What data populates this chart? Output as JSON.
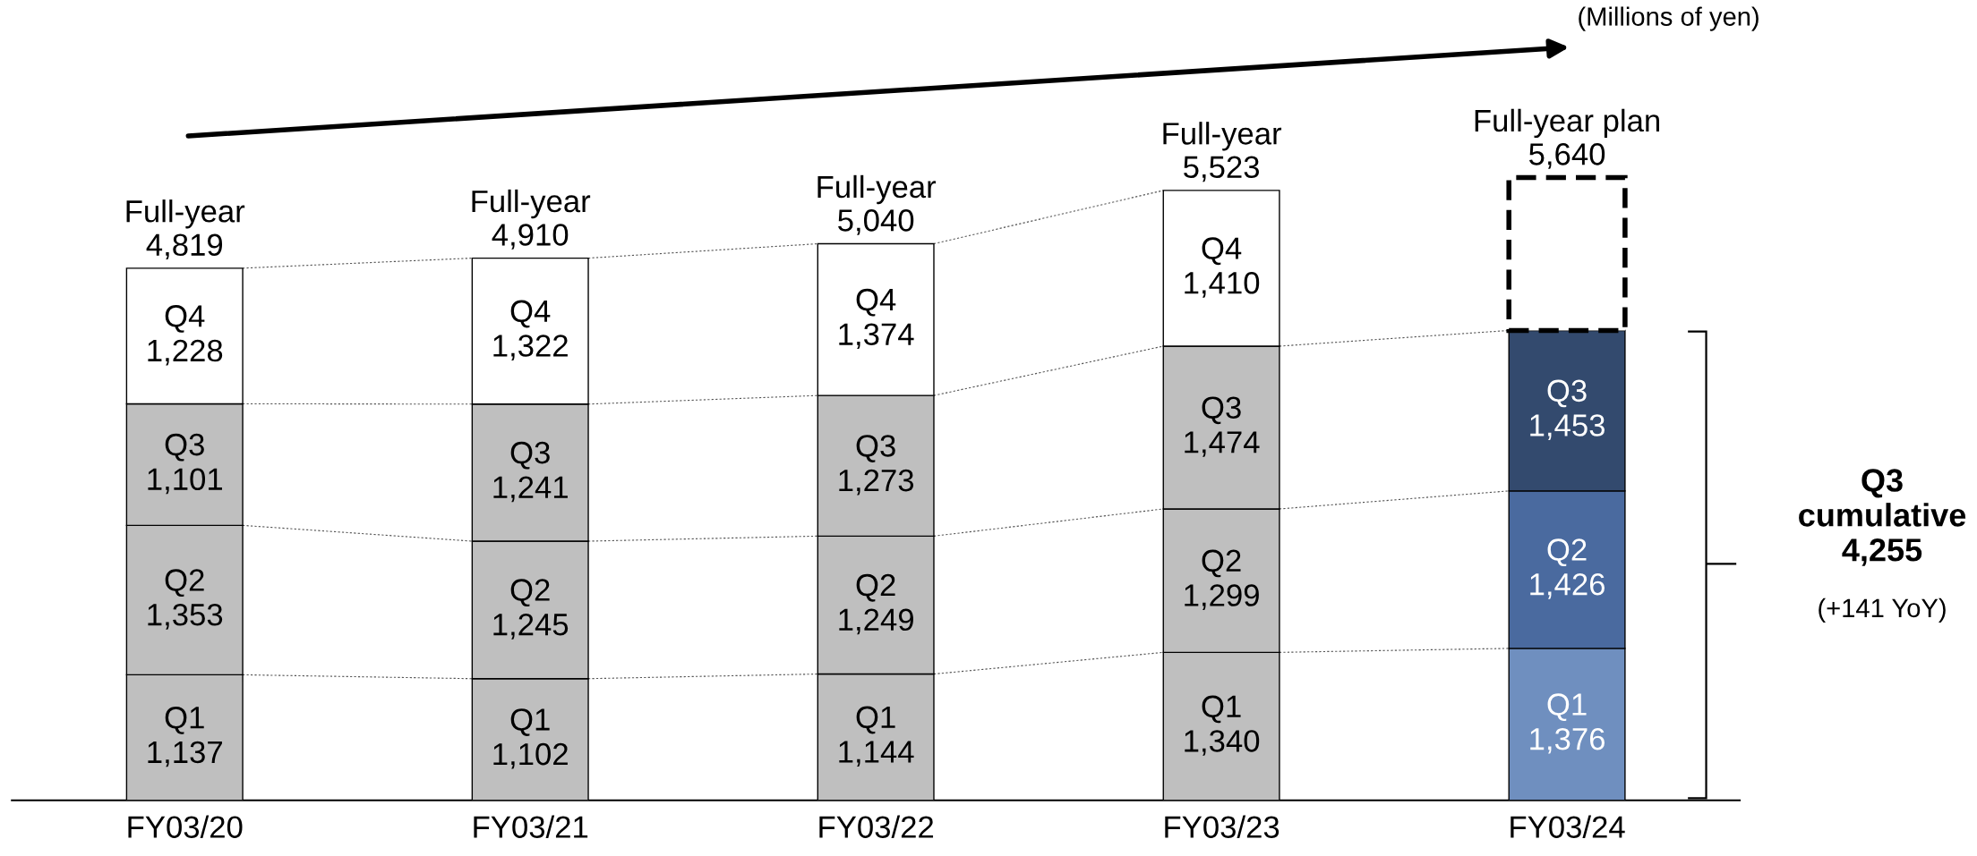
{
  "chart_data": {
    "type": "bar",
    "stacked": true,
    "categories": [
      "FY03/20",
      "FY03/21",
      "FY03/22",
      "FY03/23",
      "FY03/24"
    ],
    "series": [
      {
        "name": "Q1",
        "colors": [
          "#bfbfbf",
          "#bfbfbf",
          "#bfbfbf",
          "#bfbfbf",
          "#6f8fbf"
        ],
        "values": [
          1137,
          1102,
          1144,
          1340,
          1376
        ],
        "value_labels": [
          "1,137",
          "1,102",
          "1,144",
          "1,340",
          "1,376"
        ]
      },
      {
        "name": "Q2",
        "colors": [
          "#bfbfbf",
          "#bfbfbf",
          "#bfbfbf",
          "#bfbfbf",
          "#4a6a9f"
        ],
        "values": [
          1353,
          1245,
          1249,
          1299,
          1426
        ],
        "value_labels": [
          "1,353",
          "1,245",
          "1,249",
          "1,299",
          "1,426"
        ]
      },
      {
        "name": "Q3",
        "colors": [
          "#bfbfbf",
          "#bfbfbf",
          "#bfbfbf",
          "#bfbfbf",
          "#334a6e"
        ],
        "values": [
          1101,
          1241,
          1273,
          1474,
          1453
        ],
        "value_labels": [
          "1,101",
          "1,241",
          "1,273",
          "1,474",
          "1,453"
        ]
      },
      {
        "name": "Q4",
        "colors": [
          "#ffffff",
          "#ffffff",
          "#ffffff",
          "#ffffff",
          "#ffffff"
        ],
        "values": [
          1228,
          1322,
          1374,
          1410,
          null
        ],
        "value_labels": [
          "1,228",
          "1,322",
          "1,374",
          "1,410",
          null
        ]
      },
      {
        "colors": [
          "#ffffff",
          "#ffffff",
          "#ffffff",
          "#ffffff",
          "#ffffff"
        ],
        "line_style": "dashed",
        "values": [
          null,
          null,
          null,
          null,
          1385
        ]
      }
    ],
    "totals": [
      "Full-year\n4,819",
      "Full-year\n4,910",
      "Full-year\n5,040",
      "Full-year\n5,523",
      "Full-year plan\n5,640"
    ],
    "annotations": [
      "(Millions of yen)",
      "Q3\ncumulative\n4,255",
      "(+141 YoY)"
    ]
  }
}
